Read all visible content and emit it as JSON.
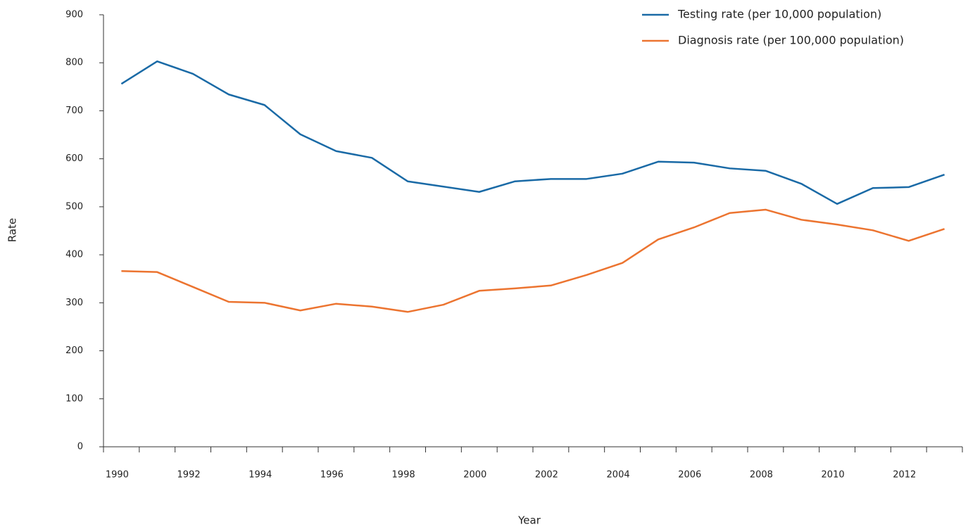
{
  "chart_data": {
    "type": "line",
    "x_label": "Year",
    "y_label": "Rate",
    "categories": [
      "1990",
      null,
      "1992",
      null,
      "1994",
      null,
      "1996",
      null,
      "1998",
      null,
      "2000",
      null,
      "2002",
      null,
      "2004",
      null,
      "2006",
      null,
      "2008",
      null,
      "2010",
      null,
      "2012",
      null
    ],
    "series": [
      {
        "name": "Testing rate (per 10,000 population)",
        "color": "#1a6aa6",
        "values": [
          756,
          803,
          777,
          734,
          712,
          651,
          616,
          602,
          553,
          542,
          531,
          553,
          558,
          558,
          569,
          594,
          592,
          580,
          575,
          548,
          506,
          539,
          541,
          567
        ]
      },
      {
        "name": "Diagnosis rate (per 100,000 population)",
        "color": "#ec7430",
        "values": [
          366,
          364,
          333,
          302,
          300,
          284,
          298,
          292,
          281,
          296,
          325,
          330,
          336,
          358,
          383,
          432,
          457,
          487,
          494,
          473,
          463,
          451,
          429,
          454
        ]
      }
    ],
    "ylim": [
      0,
      900
    ],
    "yticks": [
      0,
      100,
      200,
      300,
      400,
      500,
      600,
      700,
      800,
      900
    ],
    "grid": false,
    "legend": "top-right"
  }
}
